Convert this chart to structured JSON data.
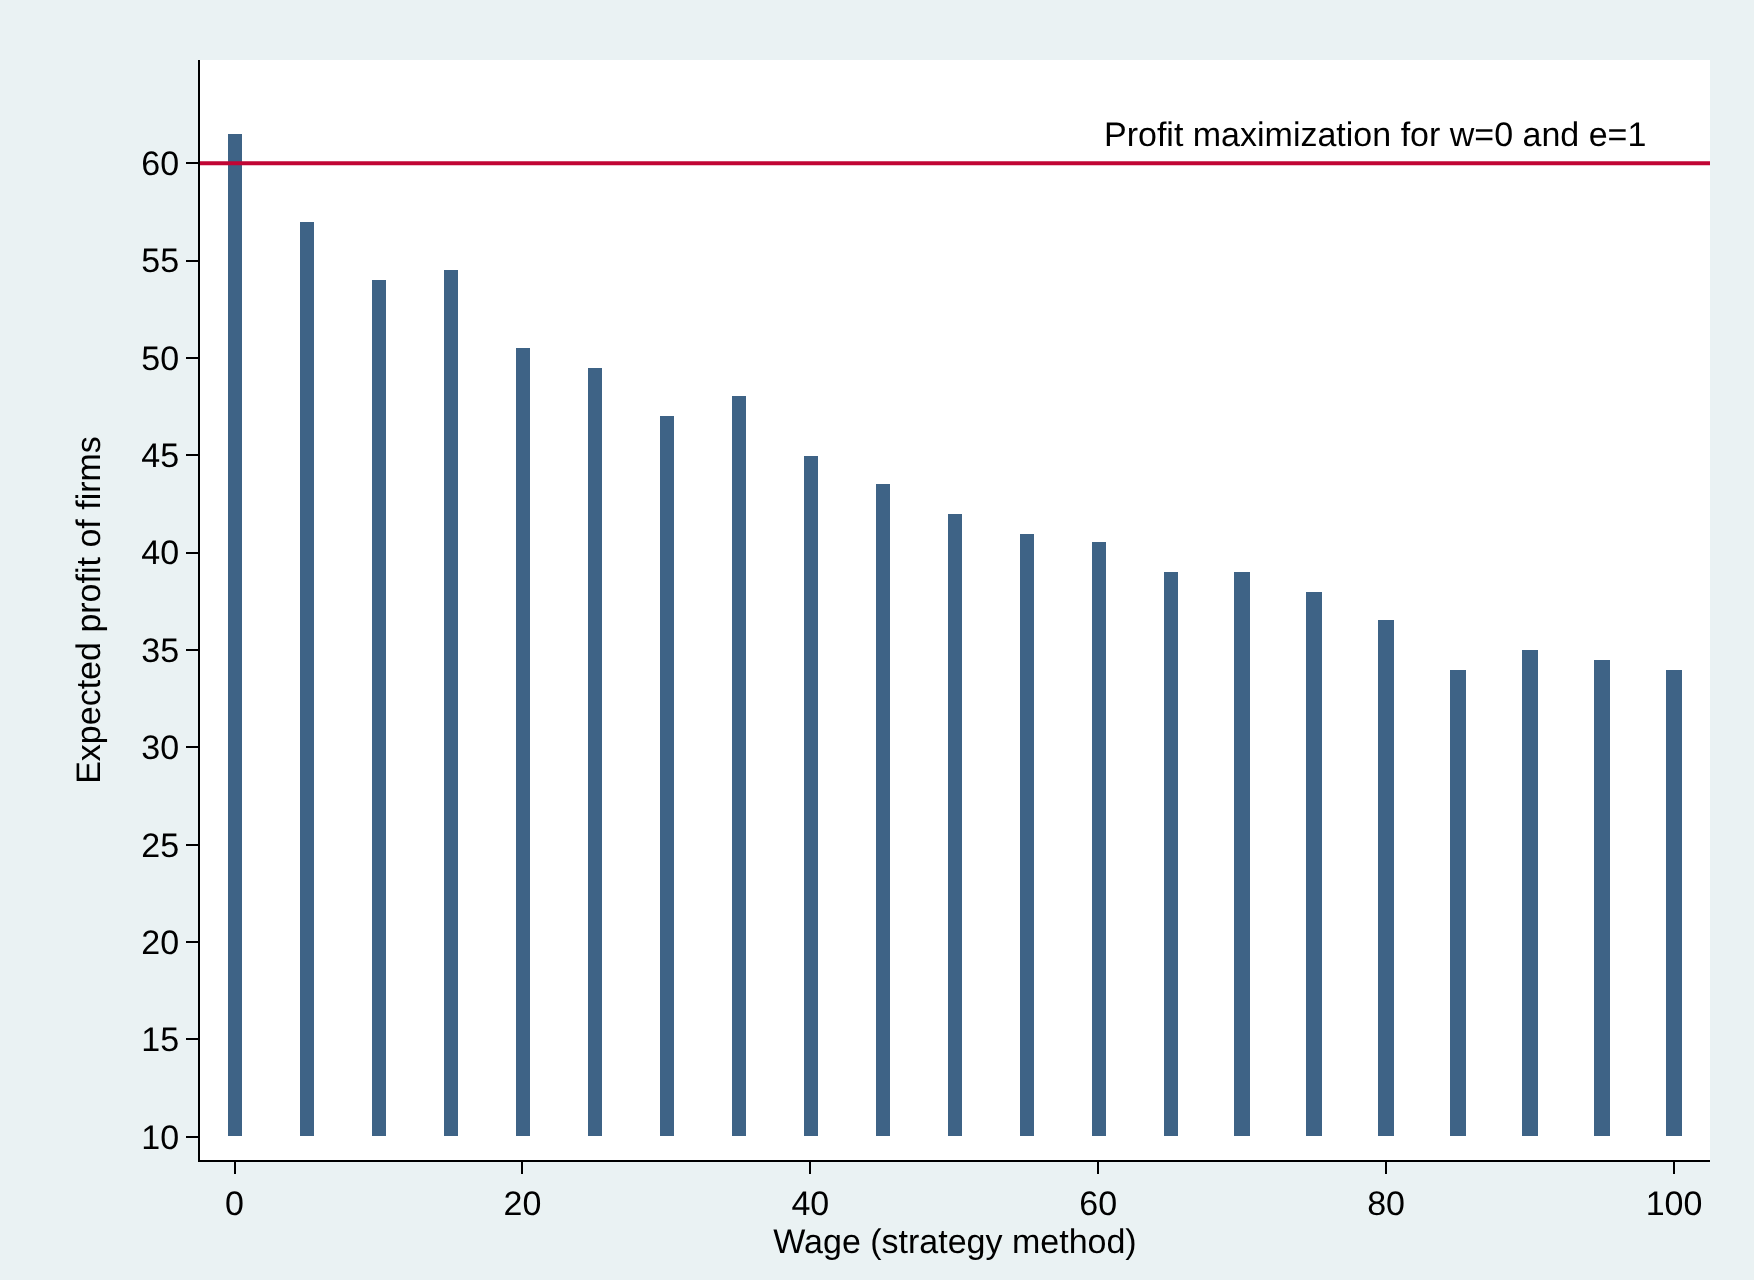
{
  "chart_data": {
    "type": "bar",
    "xlabel": "Wage (strategy method)",
    "ylabel": "Expected profit of firms",
    "x": [
      0,
      5,
      10,
      15,
      20,
      25,
      30,
      35,
      40,
      45,
      50,
      55,
      60,
      65,
      70,
      75,
      80,
      85,
      90,
      95,
      100
    ],
    "base": [
      10,
      10,
      10,
      10,
      10,
      10,
      10,
      10,
      10,
      10,
      10,
      10,
      10,
      10,
      10,
      10,
      10,
      10,
      10,
      10,
      10
    ],
    "values": [
      51.5,
      47,
      44,
      44.5,
      40.5,
      39.5,
      37,
      38,
      35,
      33.5,
      32,
      31,
      30.5,
      29,
      29,
      28,
      26.5,
      24,
      25,
      24.5,
      24
    ],
    "color": "#3e6386",
    "xlim": [
      -2.4,
      102.5
    ],
    "xticks": [
      0,
      20,
      40,
      60,
      80,
      100
    ],
    "ylim": [
      8.8,
      65.3
    ],
    "yticks": [
      10,
      15,
      20,
      25,
      30,
      35,
      40,
      45,
      50,
      55,
      60
    ],
    "ref_lines": [
      {
        "axis": "y",
        "value": 60,
        "color": "#c10534"
      }
    ],
    "annotations": [
      "Profit maximization for w=0 and e=1"
    ],
    "legend": false
  }
}
